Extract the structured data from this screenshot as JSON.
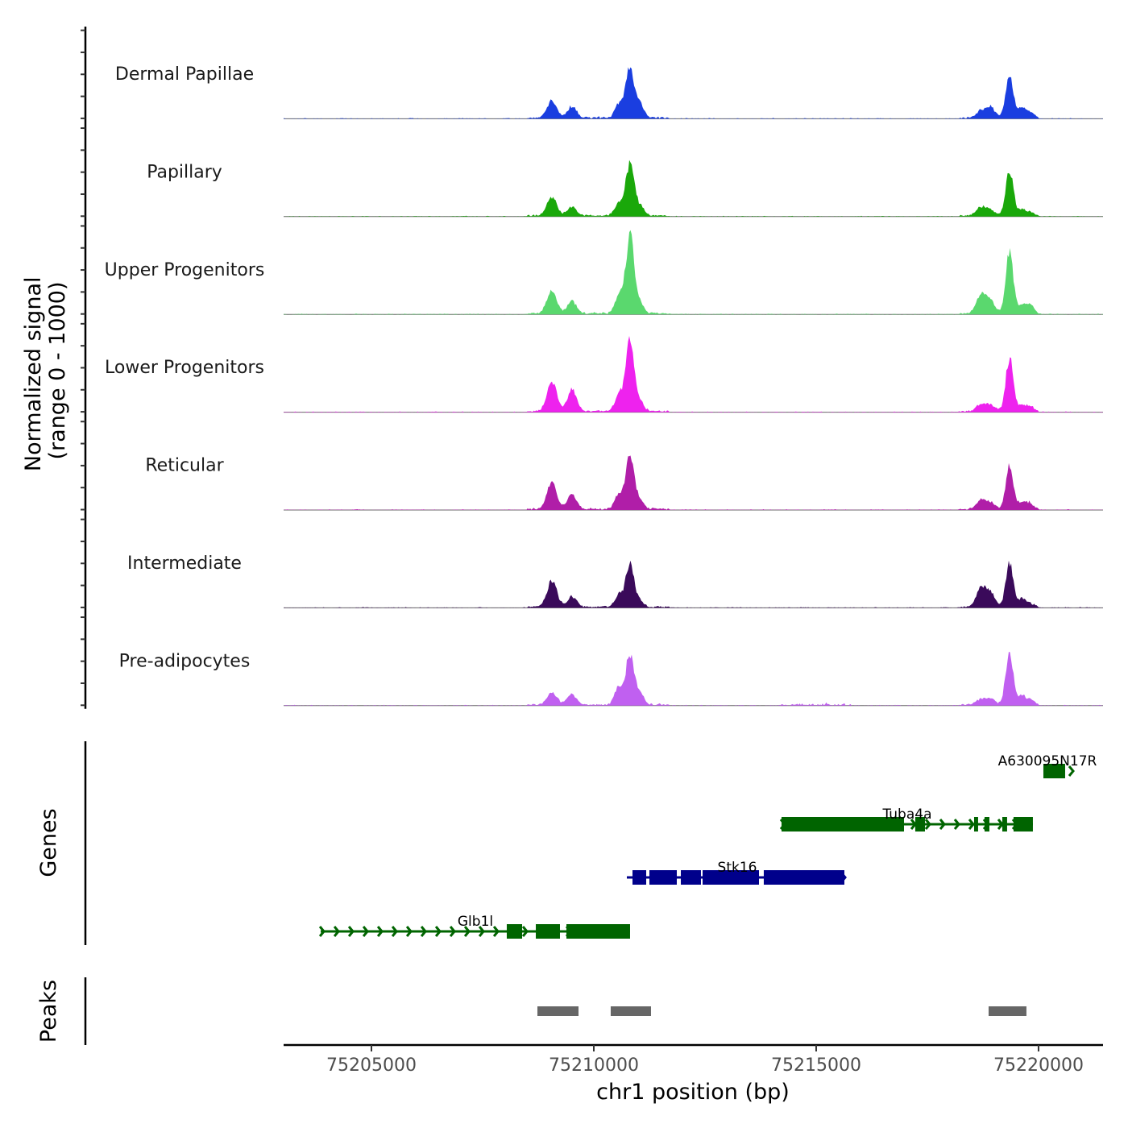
{
  "chart_data": {
    "type": "area",
    "title": "",
    "chromosome": "chr1",
    "xlabel": "chr1 position (bp)",
    "ylabel_signal": "Normalized signal\n(range 0 - 1000)",
    "ylabel_signal_lines": [
      "Normalized signal",
      "(range 0 - 1000)"
    ],
    "ylabel_genes": "Genes",
    "ylabel_peaks": "Peaks",
    "xlim": [
      75203025,
      75221450
    ],
    "ylim": [
      0,
      1000
    ],
    "x_ticks": [
      75205000,
      75210000,
      75215000,
      75220000
    ],
    "x_tick_labels": [
      "75205000",
      "75210000",
      "75215000",
      "75220000"
    ],
    "grid": false,
    "legend": "none",
    "peak_centers_bp": [
      75209058,
      75209511,
      75210562,
      75210815,
      75211051,
      75218714,
      75218931,
      75219348,
      75219620,
      75219801
    ],
    "series": [
      {
        "name": "Dermal Papillae",
        "color": "#1a3ee0",
        "peak_heights": [
          190,
          130,
          150,
          600,
          160,
          80,
          110,
          490,
          110,
          70
        ]
      },
      {
        "name": "Papillary",
        "color": "#1aa80a",
        "peak_heights": [
          210,
          100,
          140,
          600,
          100,
          100,
          60,
          520,
          70,
          40
        ]
      },
      {
        "name": "Upper Progenitors",
        "color": "#5ad86e",
        "peak_heights": [
          260,
          140,
          200,
          880,
          100,
          230,
          120,
          700,
          80,
          100
        ]
      },
      {
        "name": "Lower Progenitors",
        "color": "#ee22ee",
        "peak_heights": [
          330,
          250,
          180,
          850,
          100,
          80,
          70,
          600,
          60,
          60
        ]
      },
      {
        "name": "Reticular",
        "color": "#b01ea8",
        "peak_heights": [
          300,
          160,
          170,
          600,
          100,
          100,
          70,
          490,
          70,
          70
        ]
      },
      {
        "name": "Intermediate",
        "color": "#3a0a5a",
        "peak_heights": [
          300,
          120,
          140,
          500,
          60,
          220,
          140,
          500,
          90,
          40
        ]
      },
      {
        "name": "Pre-adipocytes",
        "color": "#c060f0",
        "peak_heights": [
          140,
          120,
          200,
          580,
          120,
          60,
          70,
          600,
          100,
          60
        ]
      }
    ],
    "genes": [
      {
        "name": "A630095N17R",
        "strand": "+",
        "color": "#006400",
        "start": 75220109,
        "end": 75220598,
        "exons": [
          [
            75220109,
            75220598
          ]
        ]
      },
      {
        "name": "Tuba4a",
        "strand": "-",
        "color": "#006400",
        "start": 75214221,
        "end": 75219873,
        "exons": [
          [
            75214221,
            75216975
          ],
          [
            75217228,
            75217446
          ],
          [
            75218551,
            75218641
          ],
          [
            75218786,
            75218895
          ],
          [
            75219185,
            75219293
          ],
          [
            75219438,
            75219873
          ]
        ]
      },
      {
        "name": "Stk16",
        "strand": "+",
        "color": "#00008b",
        "start": 75210743,
        "end": 75215634,
        "exons": [
          [
            75210870,
            75211178
          ],
          [
            75211250,
            75211866
          ],
          [
            75211957,
            75212409
          ],
          [
            75212446,
            75213714
          ],
          [
            75213822,
            75215634
          ]
        ]
      },
      {
        "name": "Glb1l",
        "strand": "-",
        "color": "#006400",
        "start": 75203859,
        "end": 75210815,
        "exons": [
          [
            75208043,
            75208388
          ],
          [
            75208696,
            75209239
          ],
          [
            75209384,
            75210815
          ]
        ]
      }
    ],
    "peaks": [
      {
        "start": 75208732,
        "end": 75209656
      },
      {
        "start": 75210380,
        "end": 75211286
      },
      {
        "start": 75218877,
        "end": 75219728
      }
    ],
    "peak_color": "#666666"
  }
}
